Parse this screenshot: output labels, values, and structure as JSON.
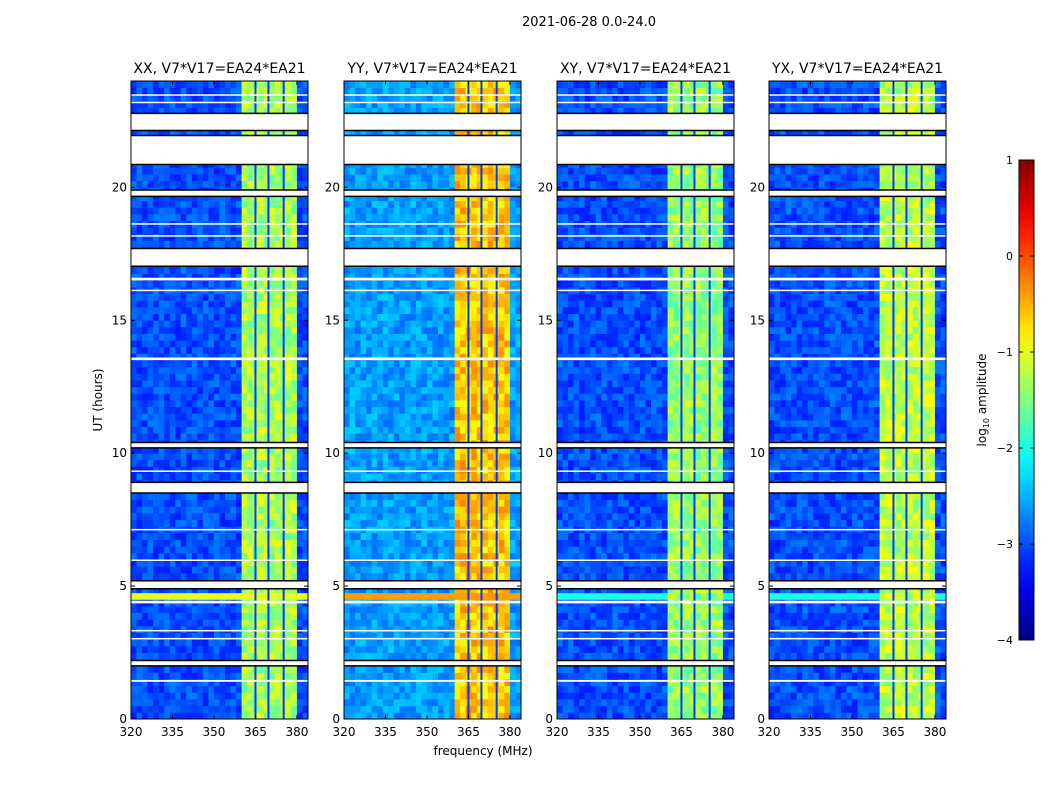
{
  "chart_data": {
    "type": "heatmap",
    "title": "2021-06-28 0.0-24.0",
    "xlabel": "frequency (MHz)",
    "ylabel": "UT (hours)",
    "xlim": [
      320,
      384
    ],
    "ylim": [
      0,
      24
    ],
    "xticks": [
      "320",
      "335",
      "350",
      "365",
      "380"
    ],
    "yticks": [
      "0",
      "5",
      "10",
      "15",
      "20"
    ],
    "colormap": "jet",
    "colorbar": {
      "label_prefix": "log",
      "label_sub": "10",
      "label_suffix": " amplitude",
      "range": [
        -4,
        1
      ],
      "ticks": [
        "1",
        "0",
        "−1",
        "−2",
        "−3",
        "−4"
      ]
    },
    "band_mhz": [
      360,
      380
    ],
    "band_notches_mhz": [
      365,
      369.7,
      375.2
    ],
    "flagged_hours": [
      [
        22.14,
        22.78
      ],
      [
        20.86,
        21.95
      ],
      [
        23.45,
        23.5
      ],
      [
        23.18,
        23.22
      ],
      [
        19.66,
        19.9
      ],
      [
        18.6,
        18.65
      ],
      [
        18.15,
        18.2
      ],
      [
        17.03,
        17.7
      ],
      [
        16.5,
        16.6
      ],
      [
        16.1,
        16.15
      ],
      [
        13.5,
        13.6
      ],
      [
        10.2,
        10.4
      ],
      [
        9.3,
        9.35
      ],
      [
        8.5,
        8.9
      ],
      [
        7.1,
        7.15
      ],
      [
        5.95,
        6.0
      ],
      [
        4.9,
        5.2
      ],
      [
        4.35,
        4.45
      ],
      [
        3.3,
        3.35
      ],
      [
        3.0,
        3.05
      ],
      [
        2.0,
        2.2
      ],
      [
        1.4,
        1.47
      ]
    ],
    "panels": [
      {
        "title": "XX, V7*V17=EA24*EA21",
        "background_log_amp": -3.0,
        "band_log_amp": -1.3,
        "rfi_hours": [
          4.6,
          4.75
        ],
        "rfi_log_amp": -1.0
      },
      {
        "title": "YY, V7*V17=EA24*EA21",
        "background_log_amp": -2.6,
        "band_log_amp": -0.6,
        "rfi_hours": [
          4.6,
          4.75
        ],
        "rfi_log_amp": -0.4
      },
      {
        "title": "XY, V7*V17=EA24*EA21",
        "background_log_amp": -3.0,
        "band_log_amp": -1.4,
        "rfi_hours": [
          4.6,
          4.75
        ],
        "rfi_log_amp": -2.0
      },
      {
        "title": "YX, V7*V17=EA24*EA21",
        "background_log_amp": -3.0,
        "band_log_amp": -1.2,
        "rfi_hours": [
          4.6,
          4.75
        ],
        "rfi_log_amp": -2.0
      }
    ]
  }
}
